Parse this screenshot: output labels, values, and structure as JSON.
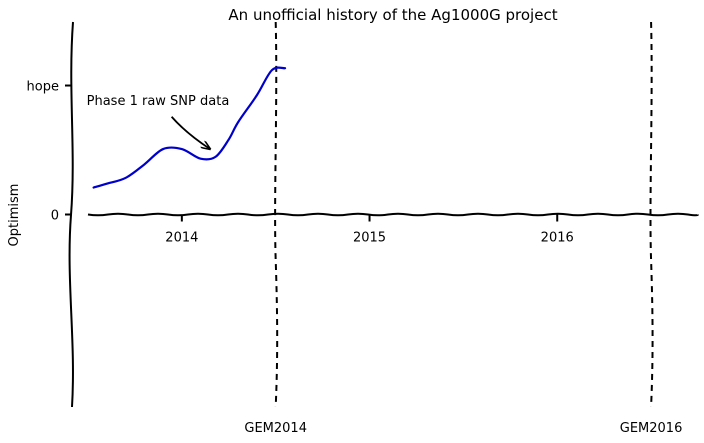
{
  "chart_data": {
    "type": "line",
    "title": "An unofficial history of the Ag1000G project",
    "xlabel": "",
    "ylabel": "Optimism",
    "xlim": [
      2013.5,
      2016.75
    ],
    "ylim": [
      -10,
      10
    ],
    "x_ticks": [
      {
        "value": 2014,
        "label": "2014"
      },
      {
        "value": 2015,
        "label": "2015"
      },
      {
        "value": 2016,
        "label": "2016"
      }
    ],
    "y_ticks": [
      {
        "value": 0,
        "label": "0"
      },
      {
        "value": 6.7,
        "label": "hope"
      }
    ],
    "baseline": {
      "value": 0,
      "color": "#000000"
    },
    "series": [
      {
        "color": "#0000cc",
        "x": [
          2013.53,
          2013.6,
          2013.7,
          2013.8,
          2013.9,
          2014.0,
          2014.1,
          2014.18,
          2014.25,
          2014.3,
          2014.4,
          2014.48,
          2014.55
        ],
        "y": [
          1.4,
          1.6,
          1.9,
          2.6,
          3.4,
          3.4,
          2.9,
          3.0,
          3.9,
          4.8,
          6.2,
          7.5,
          7.6
        ]
      }
    ],
    "vlines": [
      {
        "x": 2014.5,
        "label": "GEM2014"
      },
      {
        "x": 2016.5,
        "label": "GEM2016"
      }
    ],
    "annotations": [
      {
        "text": "Phase 1 raw SNP data",
        "x": 2013.53,
        "y": 5.7,
        "arrow_to": [
          2014.15,
          3.4
        ]
      }
    ]
  }
}
